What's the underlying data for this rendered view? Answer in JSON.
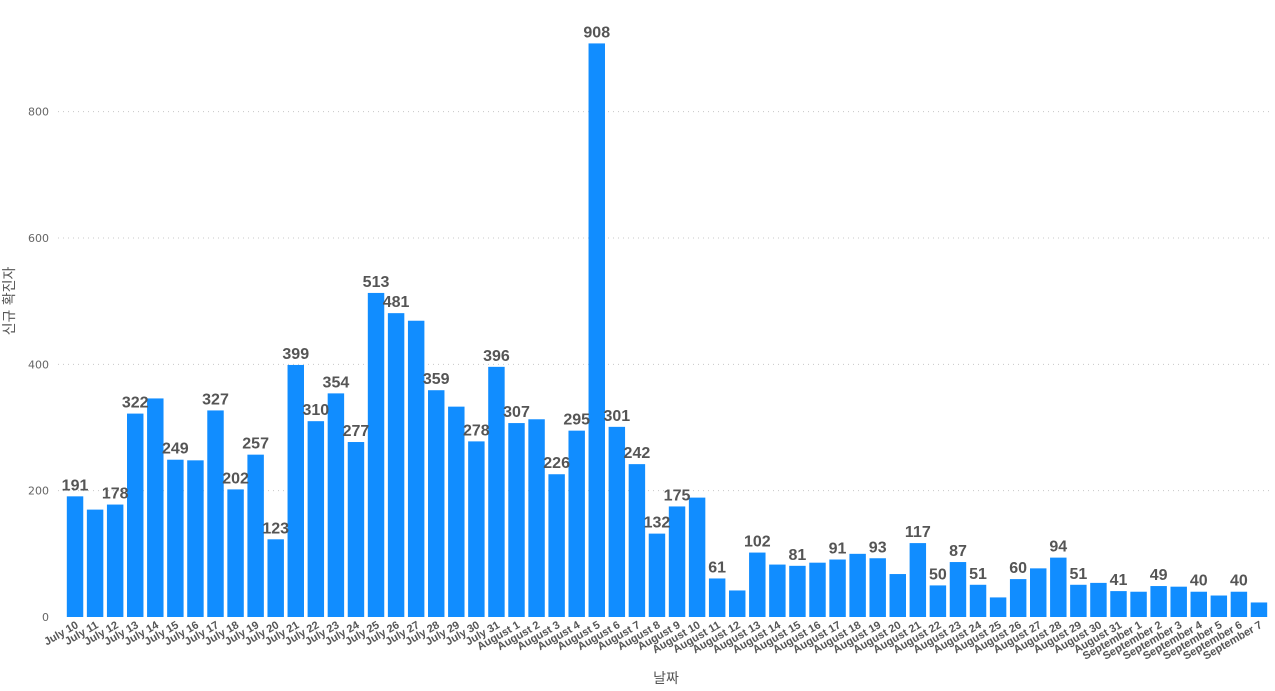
{
  "chart_data": {
    "type": "bar",
    "title": "",
    "xlabel": "날짜",
    "ylabel": "신규 확진자",
    "ylim": [
      0,
      920
    ],
    "yticks": [
      0,
      200,
      400,
      600,
      800
    ],
    "grid": true,
    "bar_color": "#118dff",
    "categories": [
      "July 10",
      "July 11",
      "July 12",
      "July 13",
      "July 14",
      "July 15",
      "July 16",
      "July 17",
      "July 18",
      "July 19",
      "July 20",
      "July 21",
      "July 22",
      "July 23",
      "July 24",
      "July 25",
      "July 26",
      "July 27",
      "July 28",
      "July 29",
      "July 30",
      "July 31",
      "August 1",
      "August 2",
      "August 3",
      "August 4",
      "August 5",
      "August 6",
      "August 7",
      "August 8",
      "August 9",
      "August 10",
      "August 11",
      "August 12",
      "August 13",
      "August 14",
      "August 15",
      "August 16",
      "August 17",
      "August 18",
      "August 19",
      "August 20",
      "August 21",
      "August 22",
      "August 23",
      "August 24",
      "August 25",
      "August 26",
      "August 27",
      "August 28",
      "August 29",
      "August 30",
      "August 31",
      "September 1",
      "September 2",
      "September 3",
      "September 4",
      "September 5",
      "September 6",
      "September 7"
    ],
    "values": [
      191,
      170,
      178,
      322,
      346,
      249,
      248,
      327,
      202,
      257,
      123,
      399,
      310,
      354,
      277,
      513,
      481,
      469,
      359,
      333,
      278,
      396,
      307,
      313,
      226,
      295,
      908,
      301,
      242,
      132,
      175,
      189,
      61,
      42,
      102,
      83,
      81,
      86,
      91,
      100,
      93,
      68,
      117,
      50,
      87,
      51,
      31,
      60,
      77,
      94,
      51,
      54,
      41,
      40,
      49,
      48,
      40,
      34,
      40,
      23
    ],
    "shown_labels": {
      "July 10": "191",
      "July 12": "178",
      "July 13": "322",
      "July 15": "249",
      "July 17": "327",
      "July 18": "202",
      "July 19": "257",
      "July 20": "123",
      "July 21": "399",
      "July 22": "310",
      "July 23": "354",
      "July 24": "277",
      "July 25": "513",
      "July 26": "481",
      "July 28": "359",
      "July 30": "278",
      "July 31": "396",
      "August 1": "307",
      "August 3": "226",
      "August 4": "295",
      "August 5": "908",
      "August 6": "301",
      "August 7": "242",
      "August 8": "132",
      "August 9": "175",
      "August 11": "61",
      "August 13": "102",
      "August 15": "81",
      "August 17": "91",
      "August 19": "93",
      "August 21": "117",
      "August 22": "50",
      "August 23": "87",
      "August 24": "51",
      "August 26": "60",
      "August 28": "94",
      "August 29": "51",
      "August 31": "41",
      "September 2": "49",
      "September 4": "40",
      "September 6": "40"
    }
  }
}
